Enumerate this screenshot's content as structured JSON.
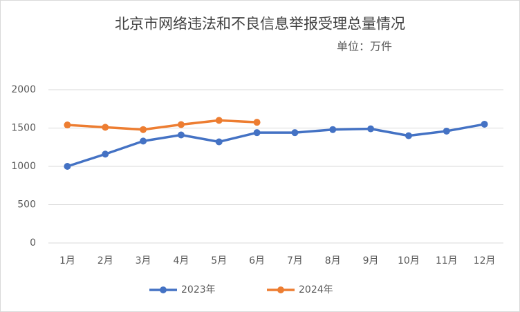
{
  "chart_data": {
    "type": "line",
    "title": "北京市网络违法和不良信息举报受理总量情况",
    "subtitle": "单位：万件",
    "categories": [
      "1月",
      "2月",
      "3月",
      "4月",
      "5月",
      "6月",
      "7月",
      "8月",
      "9月",
      "10月",
      "11月",
      "12月"
    ],
    "series": [
      {
        "name": "2023年",
        "color": "#4472c4",
        "values": [
          1000,
          1160,
          1330,
          1410,
          1320,
          1440,
          1440,
          1480,
          1490,
          1400,
          1460,
          1550
        ]
      },
      {
        "name": "2024年",
        "color": "#ed7d31",
        "values": [
          1540,
          1510,
          1480,
          1545,
          1600,
          1575,
          null,
          null,
          null,
          null,
          null,
          null
        ]
      }
    ],
    "ylim": [
      0,
      2000
    ],
    "yticks": [
      0,
      500,
      1000,
      1500,
      2000
    ],
    "grid": true,
    "legend": "bottom"
  }
}
